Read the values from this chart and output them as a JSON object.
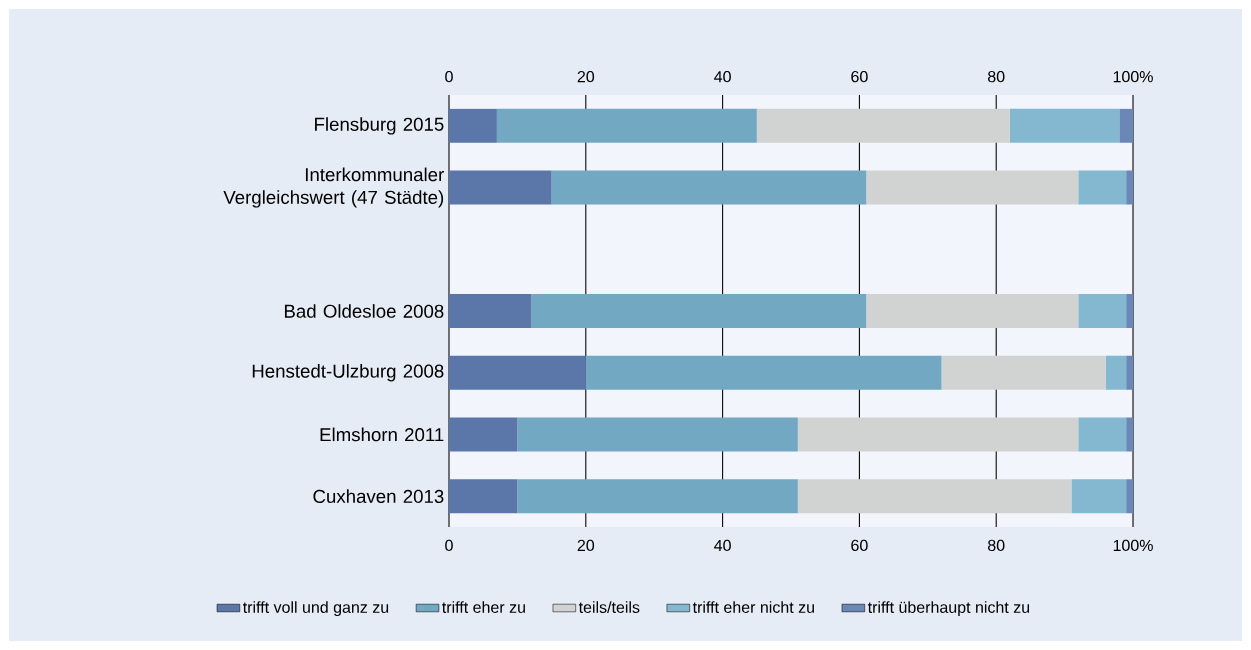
{
  "chart_data": {
    "type": "bar",
    "orientation": "horizontal",
    "stacked": true,
    "categories": [
      "Flensburg 2015",
      "Interkommunaler Vergleichswert (47 Städte)",
      null,
      "Bad Oldesloe 2008",
      "Henstedt-Ulzburg 2008",
      "Elmshorn 2011",
      "Cuxhaven 2013"
    ],
    "series": [
      {
        "name": "trifft voll und ganz zu",
        "color": "#5b76a8",
        "values": [
          7,
          15,
          null,
          12,
          20,
          10,
          10
        ]
      },
      {
        "name": "trifft eher zu",
        "color": "#73a8c2",
        "values": [
          38,
          46,
          null,
          49,
          52,
          41,
          41
        ]
      },
      {
        "name": "teils/teils",
        "color": "#d1d3d2",
        "values": [
          37,
          31,
          null,
          31,
          24,
          41,
          40
        ]
      },
      {
        "name": "trifft eher nicht zu",
        "color": "#84b8d0",
        "values": [
          16,
          7,
          null,
          7,
          3,
          7,
          8
        ]
      },
      {
        "name": "trifft überhaupt nicht zu",
        "color": "#6a87b8",
        "values": [
          2,
          1,
          null,
          1,
          1,
          1,
          1
        ]
      }
    ],
    "xlim": [
      0,
      100
    ],
    "xticks": [
      0,
      20,
      40,
      60,
      {
        "value": 80,
        "label": "80"
      },
      {
        "value": 100,
        "label": "100%"
      }
    ],
    "x2lim": [
      0,
      100
    ],
    "x2ticks": [
      0,
      20,
      40,
      60,
      {
        "value": 80,
        "label": "80"
      },
      {
        "value": 100,
        "label": "100%"
      }
    ],
    "grid": "x",
    "legend": "bottom"
  }
}
